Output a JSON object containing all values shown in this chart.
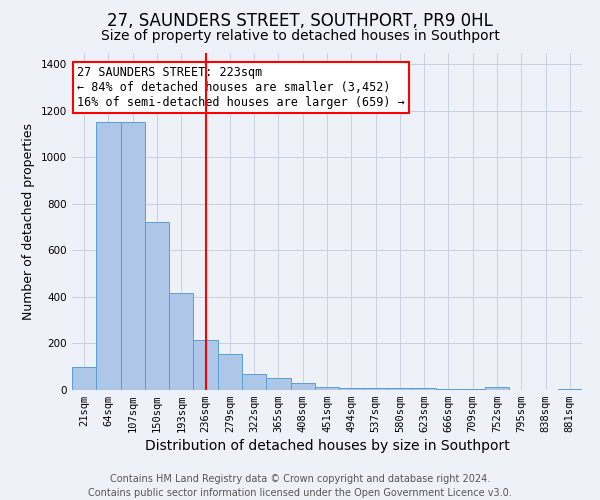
{
  "title": "27, SAUNDERS STREET, SOUTHPORT, PR9 0HL",
  "subtitle": "Size of property relative to detached houses in Southport",
  "xlabel": "Distribution of detached houses by size in Southport",
  "ylabel": "Number of detached properties",
  "categories": [
    "21sqm",
    "64sqm",
    "107sqm",
    "150sqm",
    "193sqm",
    "236sqm",
    "279sqm",
    "322sqm",
    "365sqm",
    "408sqm",
    "451sqm",
    "494sqm",
    "537sqm",
    "580sqm",
    "623sqm",
    "666sqm",
    "709sqm",
    "752sqm",
    "795sqm",
    "838sqm",
    "881sqm"
  ],
  "values": [
    100,
    1150,
    1150,
    720,
    415,
    215,
    155,
    70,
    50,
    30,
    15,
    10,
    8,
    8,
    8,
    5,
    5,
    12,
    0,
    0,
    5
  ],
  "bar_color": "#aec6e8",
  "bar_edge_color": "#5a9fd4",
  "vline_x_index": 5,
  "vline_color": "red",
  "annotation_text": "27 SAUNDERS STREET: 223sqm\n← 84% of detached houses are smaller (3,452)\n16% of semi-detached houses are larger (659) →",
  "annotation_box_color": "white",
  "annotation_box_edge_color": "red",
  "footer_line1": "Contains HM Land Registry data © Crown copyright and database right 2024.",
  "footer_line2": "Contains public sector information licensed under the Open Government Licence v3.0.",
  "ylim": [
    0,
    1450
  ],
  "background_color": "#eef2f8",
  "plot_background_color": "#eef2f8",
  "grid_color": "#c8cfe0",
  "title_fontsize": 12,
  "subtitle_fontsize": 10,
  "xlabel_fontsize": 10,
  "ylabel_fontsize": 9,
  "tick_fontsize": 7.5,
  "footer_fontsize": 7,
  "annotation_fontsize": 8.5
}
